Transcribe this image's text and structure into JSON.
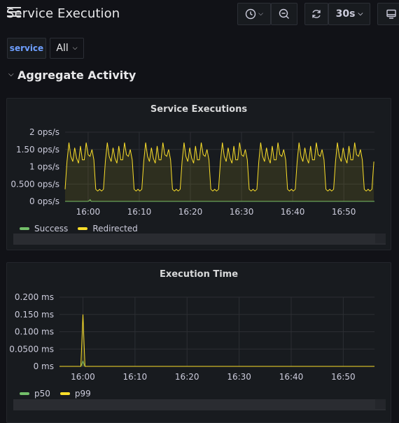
{
  "header": {
    "title": "Service Execution",
    "refresh_interval": "30s"
  },
  "variables": {
    "label": "service",
    "value": "All"
  },
  "row": {
    "title": "Aggregate Activity"
  },
  "icons": {
    "menu": "hamburger-icon",
    "time": "clock-icon",
    "zoom": "zoom-out-icon",
    "refresh": "refresh-icon",
    "tv": "monitor-icon"
  },
  "colors": {
    "success": "#73bf69",
    "redirected": "#fade2a",
    "p50": "#73bf69",
    "p99": "#fade2a",
    "accent": "#6e9fff"
  },
  "panels": {
    "executions": {
      "title": "Service Executions",
      "legend": [
        "Success",
        "Redirected"
      ]
    },
    "execution_time": {
      "title": "Execution Time",
      "legend": [
        "p50",
        "p99"
      ]
    }
  },
  "chart_data": [
    {
      "type": "line",
      "title": "Service Executions",
      "x_ticks": [
        "16:00",
        "16:10",
        "16:20",
        "16:30",
        "16:40",
        "16:50"
      ],
      "y_ticks": [
        "0 ops/s",
        "0.500 ops/s",
        "1 ops/s",
        "1.50 ops/s",
        "2 ops/s"
      ],
      "ylim": [
        0,
        2
      ],
      "xlim_minutes": [
        -4.5,
        56
      ],
      "series": [
        {
          "name": "Success",
          "color": "#73bf69",
          "x": [
            -4.5,
            0,
            0.2,
            0.4,
            0.6,
            56
          ],
          "values": [
            0,
            0,
            0.02,
            0.05,
            0,
            0
          ]
        },
        {
          "name": "Redirected",
          "color": "#fade2a",
          "pattern_period_minutes": 7.5,
          "pattern": [
            0.35,
            1.15,
            1.7,
            1.3,
            1.15,
            1.55,
            1.25,
            1.1,
            1.6,
            1.2,
            1.2,
            1.7,
            1.35,
            1.3,
            1.5,
            1.2,
            0.35,
            0.3,
            0.35,
            0.3
          ]
        }
      ],
      "grid": true
    },
    {
      "type": "line",
      "title": "Execution Time",
      "x_ticks": [
        "16:00",
        "16:10",
        "16:20",
        "16:30",
        "16:40",
        "16:50"
      ],
      "y_ticks": [
        "0 ms",
        "0.0500 ms",
        "0.100 ms",
        "0.150 ms",
        "0.200 ms"
      ],
      "ylim": [
        0,
        0.2
      ],
      "xlim_minutes": [
        -4.5,
        56
      ],
      "series": [
        {
          "name": "p50",
          "color": "#73bf69",
          "x": [
            -4.5,
            -0.4,
            0,
            0.4,
            56
          ],
          "values": [
            0,
            0,
            0.015,
            0,
            0
          ]
        },
        {
          "name": "p99",
          "color": "#fade2a",
          "x": [
            -4.5,
            -0.4,
            0,
            0.4,
            56
          ],
          "values": [
            0,
            0,
            0.15,
            0,
            0
          ]
        }
      ],
      "grid": true
    }
  ]
}
